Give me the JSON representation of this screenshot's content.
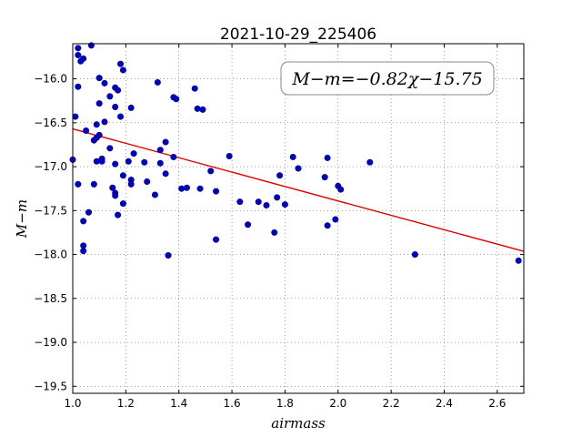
{
  "chart_data": {
    "type": "scatter",
    "title": "2021-10-29_225406",
    "xlabel": "airmass",
    "ylabel": "M−m",
    "xlim": [
      1.0,
      2.7
    ],
    "ylim": [
      -19.58,
      -15.6
    ],
    "x_ticks": [
      1.0,
      1.2,
      1.4,
      1.6,
      1.8,
      2.0,
      2.2,
      2.4,
      2.6
    ],
    "x_tick_labels": [
      "1.0",
      "1.2",
      "1.4",
      "1.6",
      "1.8",
      "2.0",
      "2.2",
      "2.4",
      "2.6"
    ],
    "y_ticks": [
      -16.0,
      -16.5,
      -17.0,
      -17.5,
      -18.0,
      -18.5,
      -19.0,
      -19.5
    ],
    "y_tick_labels": [
      "−16.0",
      "−16.5",
      "−17.0",
      "−17.5",
      "−18.0",
      "−18.5",
      "−19.0",
      "−19.5"
    ],
    "grid": true,
    "annotation": "M−m=−0.82χ−15.75",
    "annotation_position": "top-right",
    "fit_line": {
      "slope": -0.82,
      "intercept": -15.75,
      "color": "#e00000"
    },
    "point_color": "#0000cc",
    "points": [
      [
        1.02,
        -15.65
      ],
      [
        1.07,
        -15.62
      ],
      [
        1.02,
        -15.73
      ],
      [
        1.04,
        -15.77
      ],
      [
        1.03,
        -15.8
      ],
      [
        1.18,
        -15.83
      ],
      [
        1.19,
        -15.9
      ],
      [
        1.1,
        -15.99
      ],
      [
        1.32,
        -16.04
      ],
      [
        1.12,
        -16.05
      ],
      [
        1.02,
        -16.09
      ],
      [
        1.16,
        -16.1
      ],
      [
        1.46,
        -16.11
      ],
      [
        1.17,
        -16.13
      ],
      [
        1.14,
        -16.2
      ],
      [
        1.38,
        -16.21
      ],
      [
        1.39,
        -16.23
      ],
      [
        1.1,
        -16.28
      ],
      [
        1.16,
        -16.32
      ],
      [
        1.22,
        -16.33
      ],
      [
        1.47,
        -16.34
      ],
      [
        1.49,
        -16.35
      ],
      [
        1.01,
        -16.43
      ],
      [
        1.18,
        -16.43
      ],
      [
        1.12,
        -16.49
      ],
      [
        1.09,
        -16.52
      ],
      [
        1.05,
        -16.59
      ],
      [
        1.1,
        -16.64
      ],
      [
        1.09,
        -16.67
      ],
      [
        1.08,
        -16.7
      ],
      [
        1.35,
        -16.72
      ],
      [
        1.14,
        -16.79
      ],
      [
        1.33,
        -16.81
      ],
      [
        1.23,
        -16.85
      ],
      [
        1.59,
        -16.88
      ],
      [
        1.83,
        -16.89
      ],
      [
        1.38,
        -16.89
      ],
      [
        1.96,
        -16.9
      ],
      [
        1.11,
        -16.91
      ],
      [
        1.0,
        -16.92
      ],
      [
        1.09,
        -16.94
      ],
      [
        1.11,
        -16.94
      ],
      [
        1.21,
        -16.94
      ],
      [
        1.27,
        -16.95
      ],
      [
        2.12,
        -16.95
      ],
      [
        1.33,
        -16.96
      ],
      [
        1.16,
        -16.97
      ],
      [
        1.85,
        -17.02
      ],
      [
        1.52,
        -17.05
      ],
      [
        1.35,
        -17.08
      ],
      [
        1.19,
        -17.1
      ],
      [
        1.78,
        -17.1
      ],
      [
        1.95,
        -17.12
      ],
      [
        1.22,
        -17.15
      ],
      [
        1.28,
        -17.17
      ],
      [
        1.02,
        -17.2
      ],
      [
        1.08,
        -17.2
      ],
      [
        1.22,
        -17.2
      ],
      [
        2.0,
        -17.22
      ],
      [
        1.15,
        -17.24
      ],
      [
        1.43,
        -17.24
      ],
      [
        1.41,
        -17.25
      ],
      [
        1.48,
        -17.25
      ],
      [
        2.01,
        -17.26
      ],
      [
        1.54,
        -17.28
      ],
      [
        1.16,
        -17.3
      ],
      [
        1.31,
        -17.32
      ],
      [
        1.16,
        -17.33
      ],
      [
        1.77,
        -17.35
      ],
      [
        1.63,
        -17.4
      ],
      [
        1.7,
        -17.4
      ],
      [
        1.19,
        -17.42
      ],
      [
        1.8,
        -17.43
      ],
      [
        1.73,
        -17.44
      ],
      [
        1.06,
        -17.52
      ],
      [
        1.17,
        -17.55
      ],
      [
        1.99,
        -17.6
      ],
      [
        1.04,
        -17.62
      ],
      [
        1.66,
        -17.66
      ],
      [
        1.96,
        -17.67
      ],
      [
        1.76,
        -17.75
      ],
      [
        1.54,
        -17.83
      ],
      [
        1.04,
        -17.9
      ],
      [
        1.04,
        -17.96
      ],
      [
        2.29,
        -18.0
      ],
      [
        1.36,
        -18.01
      ],
      [
        2.68,
        -18.07
      ]
    ]
  }
}
